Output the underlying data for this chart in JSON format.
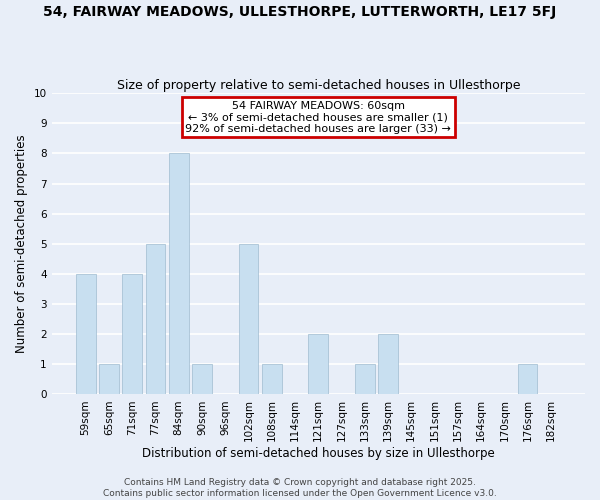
{
  "title": "54, FAIRWAY MEADOWS, ULLESTHORPE, LUTTERWORTH, LE17 5FJ",
  "subtitle": "Size of property relative to semi-detached houses in Ullesthorpe",
  "xlabel": "Distribution of semi-detached houses by size in Ullesthorpe",
  "ylabel": "Number of semi-detached properties",
  "categories": [
    "59sqm",
    "65sqm",
    "71sqm",
    "77sqm",
    "84sqm",
    "90sqm",
    "96sqm",
    "102sqm",
    "108sqm",
    "114sqm",
    "121sqm",
    "127sqm",
    "133sqm",
    "139sqm",
    "145sqm",
    "151sqm",
    "157sqm",
    "164sqm",
    "170sqm",
    "176sqm",
    "182sqm"
  ],
  "values": [
    4,
    1,
    4,
    5,
    8,
    1,
    0,
    5,
    1,
    0,
    2,
    0,
    1,
    2,
    0,
    0,
    0,
    0,
    0,
    1,
    0
  ],
  "bar_color": "#c8dff0",
  "ylim": [
    0,
    10
  ],
  "yticks": [
    0,
    1,
    2,
    3,
    4,
    5,
    6,
    7,
    8,
    9,
    10
  ],
  "annotation_title": "54 FAIRWAY MEADOWS: 60sqm",
  "annotation_line1": "← 3% of semi-detached houses are smaller (1)",
  "annotation_line2": "92% of semi-detached houses are larger (33) →",
  "footer1": "Contains HM Land Registry data © Crown copyright and database right 2025.",
  "footer2": "Contains public sector information licensed under the Open Government Licence v3.0.",
  "background_color": "#e8eef8",
  "plot_bg_color": "#e8eef8",
  "grid_color": "#ffffff",
  "annotation_box_color": "#ffffff",
  "annotation_box_edge_color": "#cc0000",
  "title_fontsize": 10,
  "subtitle_fontsize": 9,
  "axis_label_fontsize": 8.5,
  "tick_fontsize": 7.5,
  "annotation_fontsize": 8,
  "footer_fontsize": 6.5
}
